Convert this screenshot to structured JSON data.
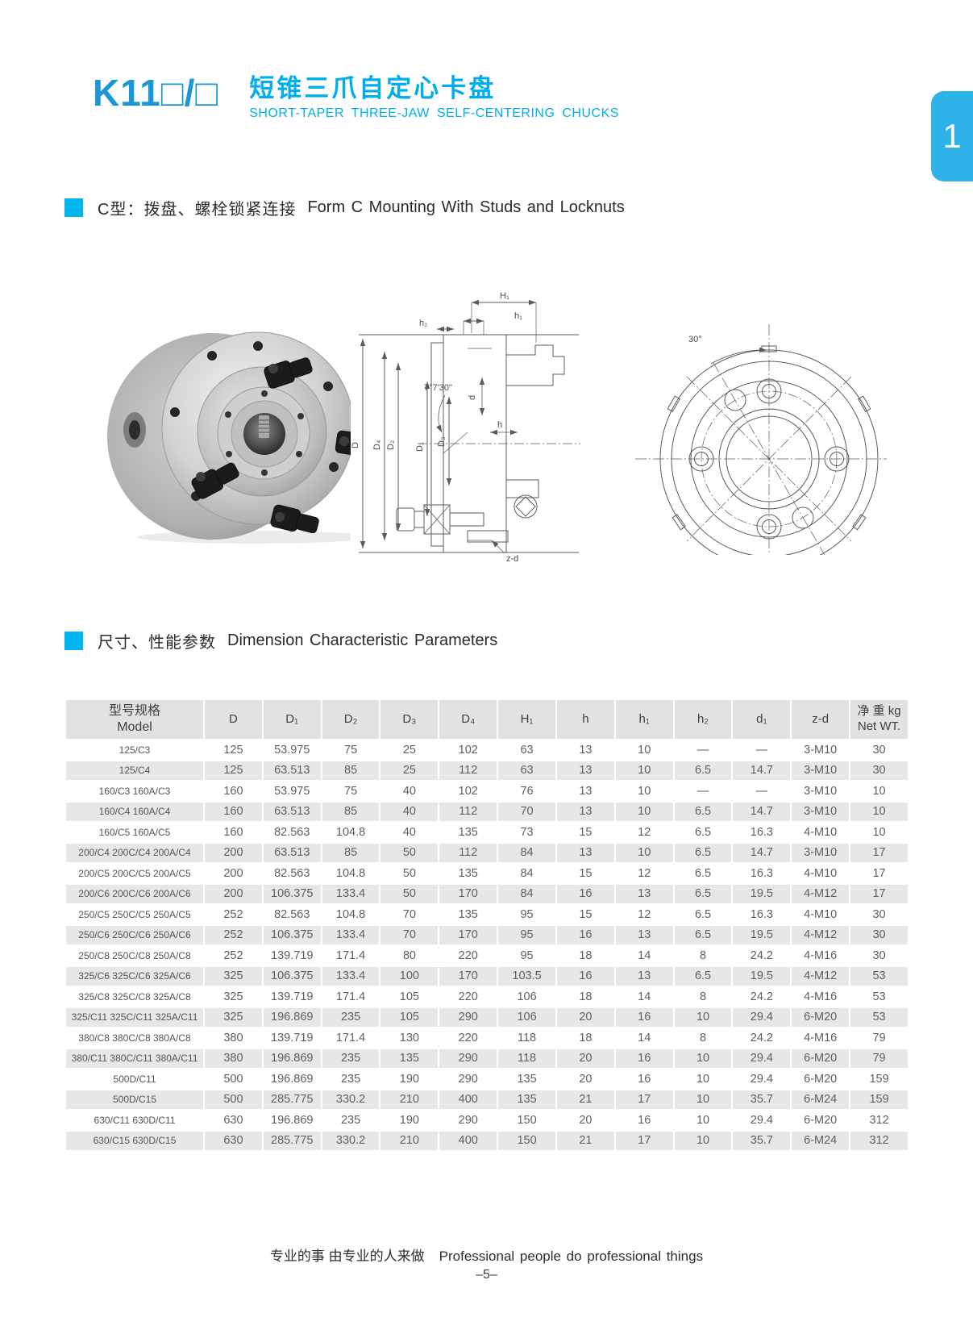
{
  "header": {
    "model_code": "K11□/□",
    "title_zh": "短锥三爪自定心卡盘",
    "title_en": "SHORT-TAPER THREE-JAW SELF-CENTERING CHUCKS",
    "accent_blue": "#1a97d5",
    "accent_cyan": "#00aeef",
    "tab_number": "1",
    "tab_color": "#2eb3e8"
  },
  "sections": {
    "mounting": {
      "title_zh": "C型：拨盘、螺栓锁紧连接",
      "title_en": "Form C Mounting With Studs and Locknuts"
    },
    "dimensions": {
      "title_zh": "尺寸、性能参数",
      "title_en": "Dimension  Characteristic Parameters"
    }
  },
  "figures": {
    "section_labels": {
      "H1": "H₁",
      "h1": "h₁",
      "h2": "h₂",
      "angle": "7°7'30\"",
      "d": "d",
      "h": "h",
      "D": "D",
      "D4": "D₄",
      "D2": "D₂",
      "D1": "D₁",
      "D3": "D₃",
      "zd": "z-d"
    },
    "front_labels": {
      "angle30": "30°"
    }
  },
  "table": {
    "columns": [
      "型号规格\nModel",
      "D",
      "D₁",
      "D₂",
      "D₃",
      "D₄",
      "H₁",
      "h",
      "h₁",
      "h₂",
      "d₁",
      "z-d",
      "净 重 kg\nNet WT."
    ],
    "rows": [
      {
        "model": "125/C3",
        "values": [
          "125",
          "53.975",
          "75",
          "25",
          "102",
          "63",
          "13",
          "10",
          "—",
          "—",
          "3-M10",
          "30"
        ]
      },
      {
        "model": "125/C4",
        "values": [
          "125",
          "63.513",
          "85",
          "25",
          "112",
          "63",
          "13",
          "10",
          "6.5",
          "14.7",
          "3-M10",
          "30"
        ]
      },
      {
        "model": "160/C3 160A/C3",
        "values": [
          "160",
          "53.975",
          "75",
          "40",
          "102",
          "76",
          "13",
          "10",
          "—",
          "—",
          "3-M10",
          "10"
        ]
      },
      {
        "model": "160/C4 160A/C4",
        "values": [
          "160",
          "63.513",
          "85",
          "40",
          "112",
          "70",
          "13",
          "10",
          "6.5",
          "14.7",
          "3-M10",
          "10"
        ]
      },
      {
        "model": "160/C5 160A/C5",
        "values": [
          "160",
          "82.563",
          "104.8",
          "40",
          "135",
          "73",
          "15",
          "12",
          "6.5",
          "16.3",
          "4-M10",
          "10"
        ]
      },
      {
        "model": "200/C4 200C/C4 200A/C4",
        "values": [
          "200",
          "63.513",
          "85",
          "50",
          "112",
          "84",
          "13",
          "10",
          "6.5",
          "14.7",
          "3-M10",
          "17"
        ]
      },
      {
        "model": "200/C5 200C/C5 200A/C5",
        "values": [
          "200",
          "82.563",
          "104.8",
          "50",
          "135",
          "84",
          "15",
          "12",
          "6.5",
          "16.3",
          "4-M10",
          "17"
        ]
      },
      {
        "model": "200/C6 200C/C6 200A/C6",
        "values": [
          "200",
          "106.375",
          "133.4",
          "50",
          "170",
          "84",
          "16",
          "13",
          "6.5",
          "19.5",
          "4-M12",
          "17"
        ]
      },
      {
        "model": "250/C5 250C/C5 250A/C5",
        "values": [
          "252",
          "82.563",
          "104.8",
          "70",
          "135",
          "95",
          "15",
          "12",
          "6.5",
          "16.3",
          "4-M10",
          "30"
        ]
      },
      {
        "model": "250/C6 250C/C6 250A/C6",
        "values": [
          "252",
          "106.375",
          "133.4",
          "70",
          "170",
          "95",
          "16",
          "13",
          "6.5",
          "19.5",
          "4-M12",
          "30"
        ]
      },
      {
        "model": "250/C8 250C/C8 250A/C8",
        "values": [
          "252",
          "139.719",
          "171.4",
          "80",
          "220",
          "95",
          "18",
          "14",
          "8",
          "24.2",
          "4-M16",
          "30"
        ]
      },
      {
        "model": "325/C6 325C/C6 325A/C6",
        "values": [
          "325",
          "106.375",
          "133.4",
          "100",
          "170",
          "103.5",
          "16",
          "13",
          "6.5",
          "19.5",
          "4-M12",
          "53"
        ]
      },
      {
        "model": "325/C8 325C/C8 325A/C8",
        "values": [
          "325",
          "139.719",
          "171.4",
          "105",
          "220",
          "106",
          "18",
          "14",
          "8",
          "24.2",
          "4-M16",
          "53"
        ]
      },
      {
        "model": "325/C11 325C/C11 325A/C11",
        "values": [
          "325",
          "196.869",
          "235",
          "105",
          "290",
          "106",
          "20",
          "16",
          "10",
          "29.4",
          "6-M20",
          "53"
        ]
      },
      {
        "model": "380/C8 380C/C8 380A/C8",
        "values": [
          "380",
          "139.719",
          "171.4",
          "130",
          "220",
          "118",
          "18",
          "14",
          "8",
          "24.2",
          "4-M16",
          "79"
        ]
      },
      {
        "model": "380/C11 380C/C11 380A/C11",
        "values": [
          "380",
          "196.869",
          "235",
          "135",
          "290",
          "118",
          "20",
          "16",
          "10",
          "29.4",
          "6-M20",
          "79"
        ]
      },
      {
        "model": "500D/C11",
        "values": [
          "500",
          "196.869",
          "235",
          "190",
          "290",
          "135",
          "20",
          "16",
          "10",
          "29.4",
          "6-M20",
          "159"
        ]
      },
      {
        "model": "500D/C15",
        "values": [
          "500",
          "285.775",
          "330.2",
          "210",
          "400",
          "135",
          "21",
          "17",
          "10",
          "35.7",
          "6-M24",
          "159"
        ]
      },
      {
        "model": "630/C11 630D/C11",
        "values": [
          "630",
          "196.869",
          "235",
          "190",
          "290",
          "150",
          "20",
          "16",
          "10",
          "29.4",
          "6-M20",
          "312"
        ]
      },
      {
        "model": "630/C15 630D/C15",
        "values": [
          "630",
          "285.775",
          "330.2",
          "210",
          "400",
          "150",
          "21",
          "17",
          "10",
          "35.7",
          "6-M24",
          "312"
        ]
      }
    ]
  },
  "footer": {
    "slogan_zh": "专业的事  由专业的人来做",
    "slogan_en": "Professional people do professional things",
    "page_number": "–5–"
  }
}
